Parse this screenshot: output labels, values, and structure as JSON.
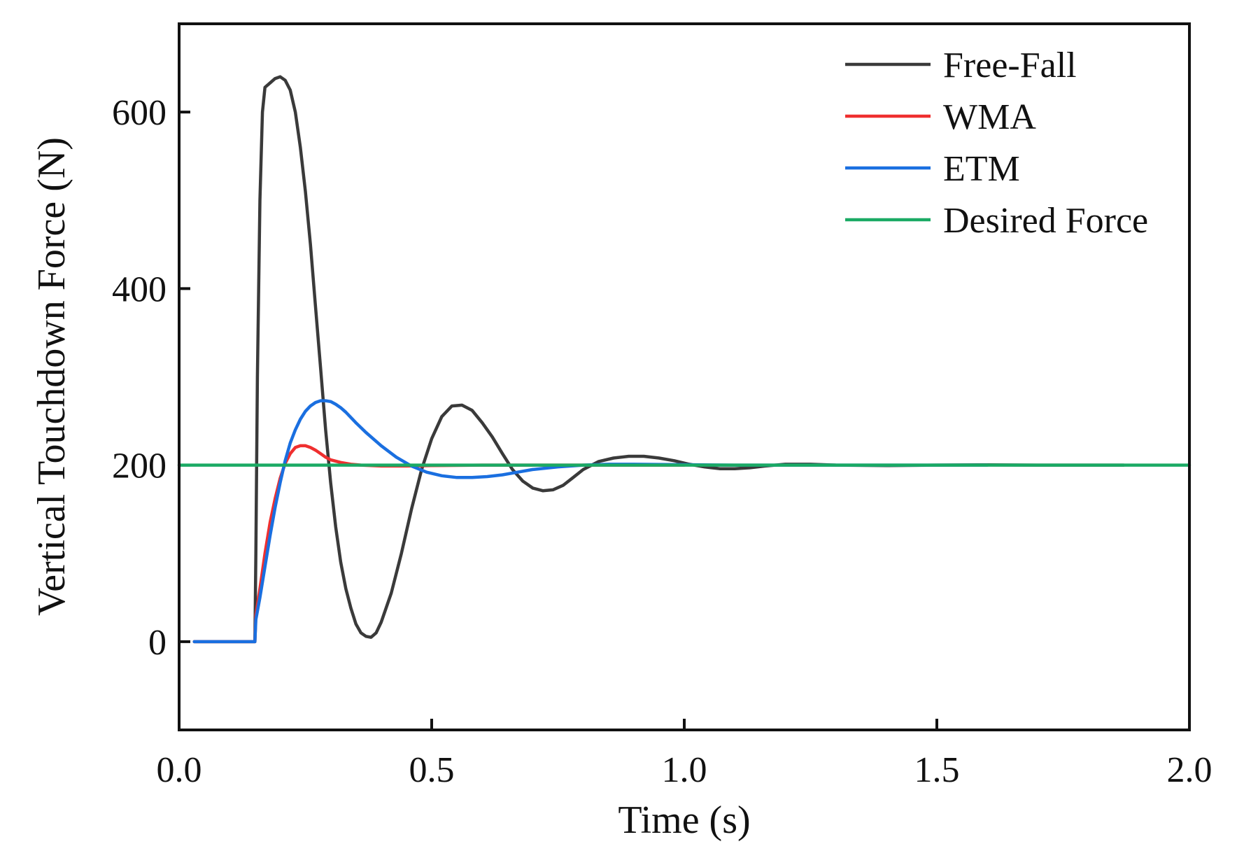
{
  "chart_data": {
    "type": "line",
    "title": "",
    "xlabel": "Time (s)",
    "ylabel": "Vertical Touchdown Force (N)",
    "xlim": [
      0,
      2.0
    ],
    "ylim": [
      -100,
      700
    ],
    "x_ticks": [
      0.0,
      0.5,
      1.0,
      1.5,
      2.0
    ],
    "x_tick_labels": [
      "0.0",
      "0.5",
      "1.0",
      "1.5",
      "2.0"
    ],
    "y_ticks": [
      0,
      200,
      400,
      600
    ],
    "y_tick_labels": [
      "0",
      "200",
      "400",
      "600"
    ],
    "grid": false,
    "legend_position": "top-right",
    "series": [
      {
        "name": "Free-Fall",
        "color": "#3a3a3a",
        "points": [
          [
            0.03,
            0
          ],
          [
            0.15,
            0
          ],
          [
            0.152,
            100
          ],
          [
            0.155,
            300
          ],
          [
            0.16,
            500
          ],
          [
            0.165,
            600
          ],
          [
            0.17,
            628
          ],
          [
            0.18,
            633
          ],
          [
            0.19,
            638
          ],
          [
            0.2,
            640
          ],
          [
            0.21,
            636
          ],
          [
            0.22,
            625
          ],
          [
            0.23,
            600
          ],
          [
            0.24,
            560
          ],
          [
            0.25,
            510
          ],
          [
            0.26,
            450
          ],
          [
            0.27,
            380
          ],
          [
            0.28,
            310
          ],
          [
            0.29,
            240
          ],
          [
            0.3,
            180
          ],
          [
            0.31,
            130
          ],
          [
            0.32,
            90
          ],
          [
            0.33,
            60
          ],
          [
            0.34,
            38
          ],
          [
            0.35,
            20
          ],
          [
            0.36,
            10
          ],
          [
            0.37,
            6
          ],
          [
            0.38,
            5
          ],
          [
            0.39,
            10
          ],
          [
            0.4,
            22
          ],
          [
            0.42,
            55
          ],
          [
            0.44,
            100
          ],
          [
            0.46,
            150
          ],
          [
            0.48,
            195
          ],
          [
            0.5,
            230
          ],
          [
            0.52,
            255
          ],
          [
            0.54,
            267
          ],
          [
            0.56,
            268
          ],
          [
            0.58,
            262
          ],
          [
            0.6,
            248
          ],
          [
            0.62,
            232
          ],
          [
            0.64,
            213
          ],
          [
            0.66,
            195
          ],
          [
            0.68,
            182
          ],
          [
            0.7,
            174
          ],
          [
            0.72,
            171
          ],
          [
            0.74,
            172
          ],
          [
            0.76,
            177
          ],
          [
            0.78,
            186
          ],
          [
            0.8,
            195
          ],
          [
            0.83,
            204
          ],
          [
            0.86,
            208
          ],
          [
            0.89,
            210
          ],
          [
            0.92,
            210
          ],
          [
            0.95,
            208
          ],
          [
            0.98,
            205
          ],
          [
            1.01,
            201
          ],
          [
            1.04,
            198
          ],
          [
            1.07,
            196
          ],
          [
            1.1,
            196
          ],
          [
            1.13,
            197
          ],
          [
            1.16,
            199
          ],
          [
            1.2,
            201
          ],
          [
            1.25,
            201
          ],
          [
            1.3,
            200
          ],
          [
            1.4,
            199.5
          ],
          [
            1.5,
            200
          ],
          [
            1.6,
            200.3
          ],
          [
            1.7,
            200
          ],
          [
            1.8,
            200
          ],
          [
            1.87,
            200
          ]
        ]
      },
      {
        "name": "WMA",
        "color": "#ef2f2f",
        "points": [
          [
            0.03,
            0
          ],
          [
            0.15,
            0
          ],
          [
            0.152,
            30
          ],
          [
            0.16,
            60
          ],
          [
            0.17,
            100
          ],
          [
            0.18,
            135
          ],
          [
            0.19,
            162
          ],
          [
            0.2,
            185
          ],
          [
            0.21,
            202
          ],
          [
            0.22,
            213
          ],
          [
            0.23,
            220
          ],
          [
            0.24,
            222
          ],
          [
            0.25,
            222
          ],
          [
            0.26,
            220
          ],
          [
            0.27,
            217
          ],
          [
            0.28,
            213
          ],
          [
            0.29,
            209
          ],
          [
            0.3,
            206
          ],
          [
            0.32,
            203
          ],
          [
            0.34,
            201
          ],
          [
            0.36,
            200
          ],
          [
            0.4,
            199
          ],
          [
            0.45,
            199
          ],
          [
            0.5,
            199.5
          ],
          [
            0.6,
            200
          ],
          [
            0.8,
            200
          ],
          [
            1.0,
            200
          ]
        ]
      },
      {
        "name": "ETM",
        "color": "#1a6fe0",
        "points": [
          [
            0.03,
            0
          ],
          [
            0.15,
            0
          ],
          [
            0.152,
            25
          ],
          [
            0.16,
            50
          ],
          [
            0.17,
            85
          ],
          [
            0.18,
            120
          ],
          [
            0.19,
            152
          ],
          [
            0.2,
            180
          ],
          [
            0.21,
            205
          ],
          [
            0.22,
            225
          ],
          [
            0.23,
            240
          ],
          [
            0.24,
            252
          ],
          [
            0.25,
            261
          ],
          [
            0.26,
            267
          ],
          [
            0.27,
            271
          ],
          [
            0.28,
            273
          ],
          [
            0.29,
            273
          ],
          [
            0.3,
            272
          ],
          [
            0.31,
            269
          ],
          [
            0.32,
            265
          ],
          [
            0.33,
            260
          ],
          [
            0.35,
            248
          ],
          [
            0.37,
            237
          ],
          [
            0.4,
            222
          ],
          [
            0.43,
            209
          ],
          [
            0.46,
            199
          ],
          [
            0.49,
            192
          ],
          [
            0.52,
            188
          ],
          [
            0.55,
            186
          ],
          [
            0.58,
            186
          ],
          [
            0.61,
            187
          ],
          [
            0.64,
            189
          ],
          [
            0.67,
            192
          ],
          [
            0.7,
            195
          ],
          [
            0.75,
            198
          ],
          [
            0.8,
            200
          ],
          [
            0.85,
            201
          ],
          [
            0.9,
            201
          ],
          [
            1.0,
            200.5
          ],
          [
            1.1,
            200
          ],
          [
            1.3,
            200
          ],
          [
            1.6,
            200
          ]
        ]
      },
      {
        "name": "Desired Force",
        "color": "#1aaa64",
        "points": [
          [
            0.0,
            200
          ],
          [
            2.0,
            200
          ]
        ]
      }
    ]
  }
}
